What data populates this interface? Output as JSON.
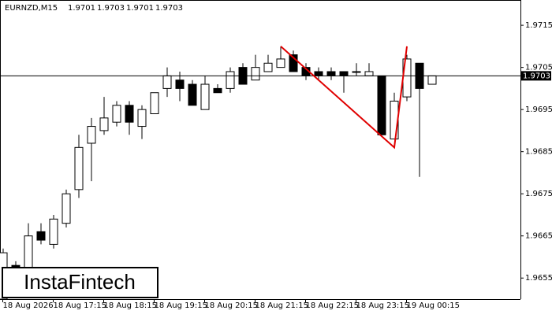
{
  "chart_data": {
    "type": "candlestick",
    "title": "EURNZD,M15",
    "header_values": [
      1.9701,
      1.9703,
      1.9701,
      1.9703
    ],
    "categories": [
      "18 Aug 2026",
      null,
      null,
      null,
      "18 Aug 17:15",
      null,
      null,
      null,
      "18 Aug 18:15",
      null,
      null,
      null,
      "18 Aug 19:15",
      null,
      null,
      null,
      "18 Aug 20:15",
      null,
      null,
      null,
      "18 Aug 21:15",
      null,
      null,
      null,
      "18 Aug 22:15",
      null,
      null,
      null,
      "18 Aug 23:15",
      null,
      null,
      null,
      "19 Aug 00:15",
      null,
      null
    ],
    "open": [
      1.965,
      1.9658,
      1.9657,
      1.9666,
      1.9663,
      1.9668,
      1.9676,
      1.9687,
      1.969,
      1.9692,
      1.9696,
      1.9691,
      1.9694,
      1.97,
      1.9702,
      1.9701,
      1.9695,
      1.97,
      1.97,
      1.9705,
      1.9702,
      1.9704,
      1.9705,
      1.9708,
      1.9705,
      1.9704,
      1.9704,
      1.9704,
      1.9704,
      1.9703,
      1.9703,
      1.9688,
      1.9698,
      1.9706,
      1.9701
    ],
    "high": [
      1.9662,
      1.9659,
      1.9668,
      1.9668,
      1.967,
      1.9676,
      1.9689,
      1.9693,
      1.9698,
      1.9697,
      1.9697,
      1.9696,
      1.9699,
      1.9705,
      1.9704,
      1.9702,
      1.9703,
      1.9701,
      1.9705,
      1.9706,
      1.9708,
      1.9708,
      1.971,
      1.9709,
      1.9706,
      1.9705,
      1.9705,
      1.9704,
      1.9706,
      1.9706,
      1.9703,
      1.9699,
      1.9708,
      1.9706,
      1.9703
    ],
    "low": [
      1.965,
      1.9656,
      1.9656,
      1.9663,
      1.9662,
      1.9667,
      1.9674,
      1.9678,
      1.9689,
      1.9691,
      1.9689,
      1.9688,
      1.9694,
      1.9698,
      1.9697,
      1.9696,
      1.9695,
      1.9699,
      1.9699,
      1.9701,
      1.9702,
      1.9704,
      1.9705,
      1.9704,
      1.9702,
      1.9702,
      1.9702,
      1.9699,
      1.9703,
      1.9703,
      1.9689,
      1.9688,
      1.9697,
      1.9679,
      1.9701
    ],
    "close": [
      1.9661,
      1.9657,
      1.9665,
      1.9664,
      1.9669,
      1.9675,
      1.9686,
      1.9691,
      1.9693,
      1.9696,
      1.9692,
      1.9695,
      1.9699,
      1.9703,
      1.97,
      1.9696,
      1.9701,
      1.9699,
      1.9704,
      1.9701,
      1.9705,
      1.9706,
      1.9707,
      1.9704,
      1.9703,
      1.9703,
      1.9703,
      1.9703,
      1.9704,
      1.9704,
      1.9689,
      1.9697,
      1.9707,
      1.97,
      1.9703
    ],
    "current_price": 1.9703,
    "pattern": {
      "x": [
        22,
        31,
        32
      ],
      "y": [
        1.971,
        1.9686,
        1.971
      ],
      "color": "#e00000"
    },
    "ylim": [
      1.965,
      1.9721
    ],
    "yticks": [
      1.9715,
      1.9705,
      1.9695,
      1.9685,
      1.9675,
      1.9665,
      1.9655
    ],
    "watermark": "InstaFintech"
  }
}
